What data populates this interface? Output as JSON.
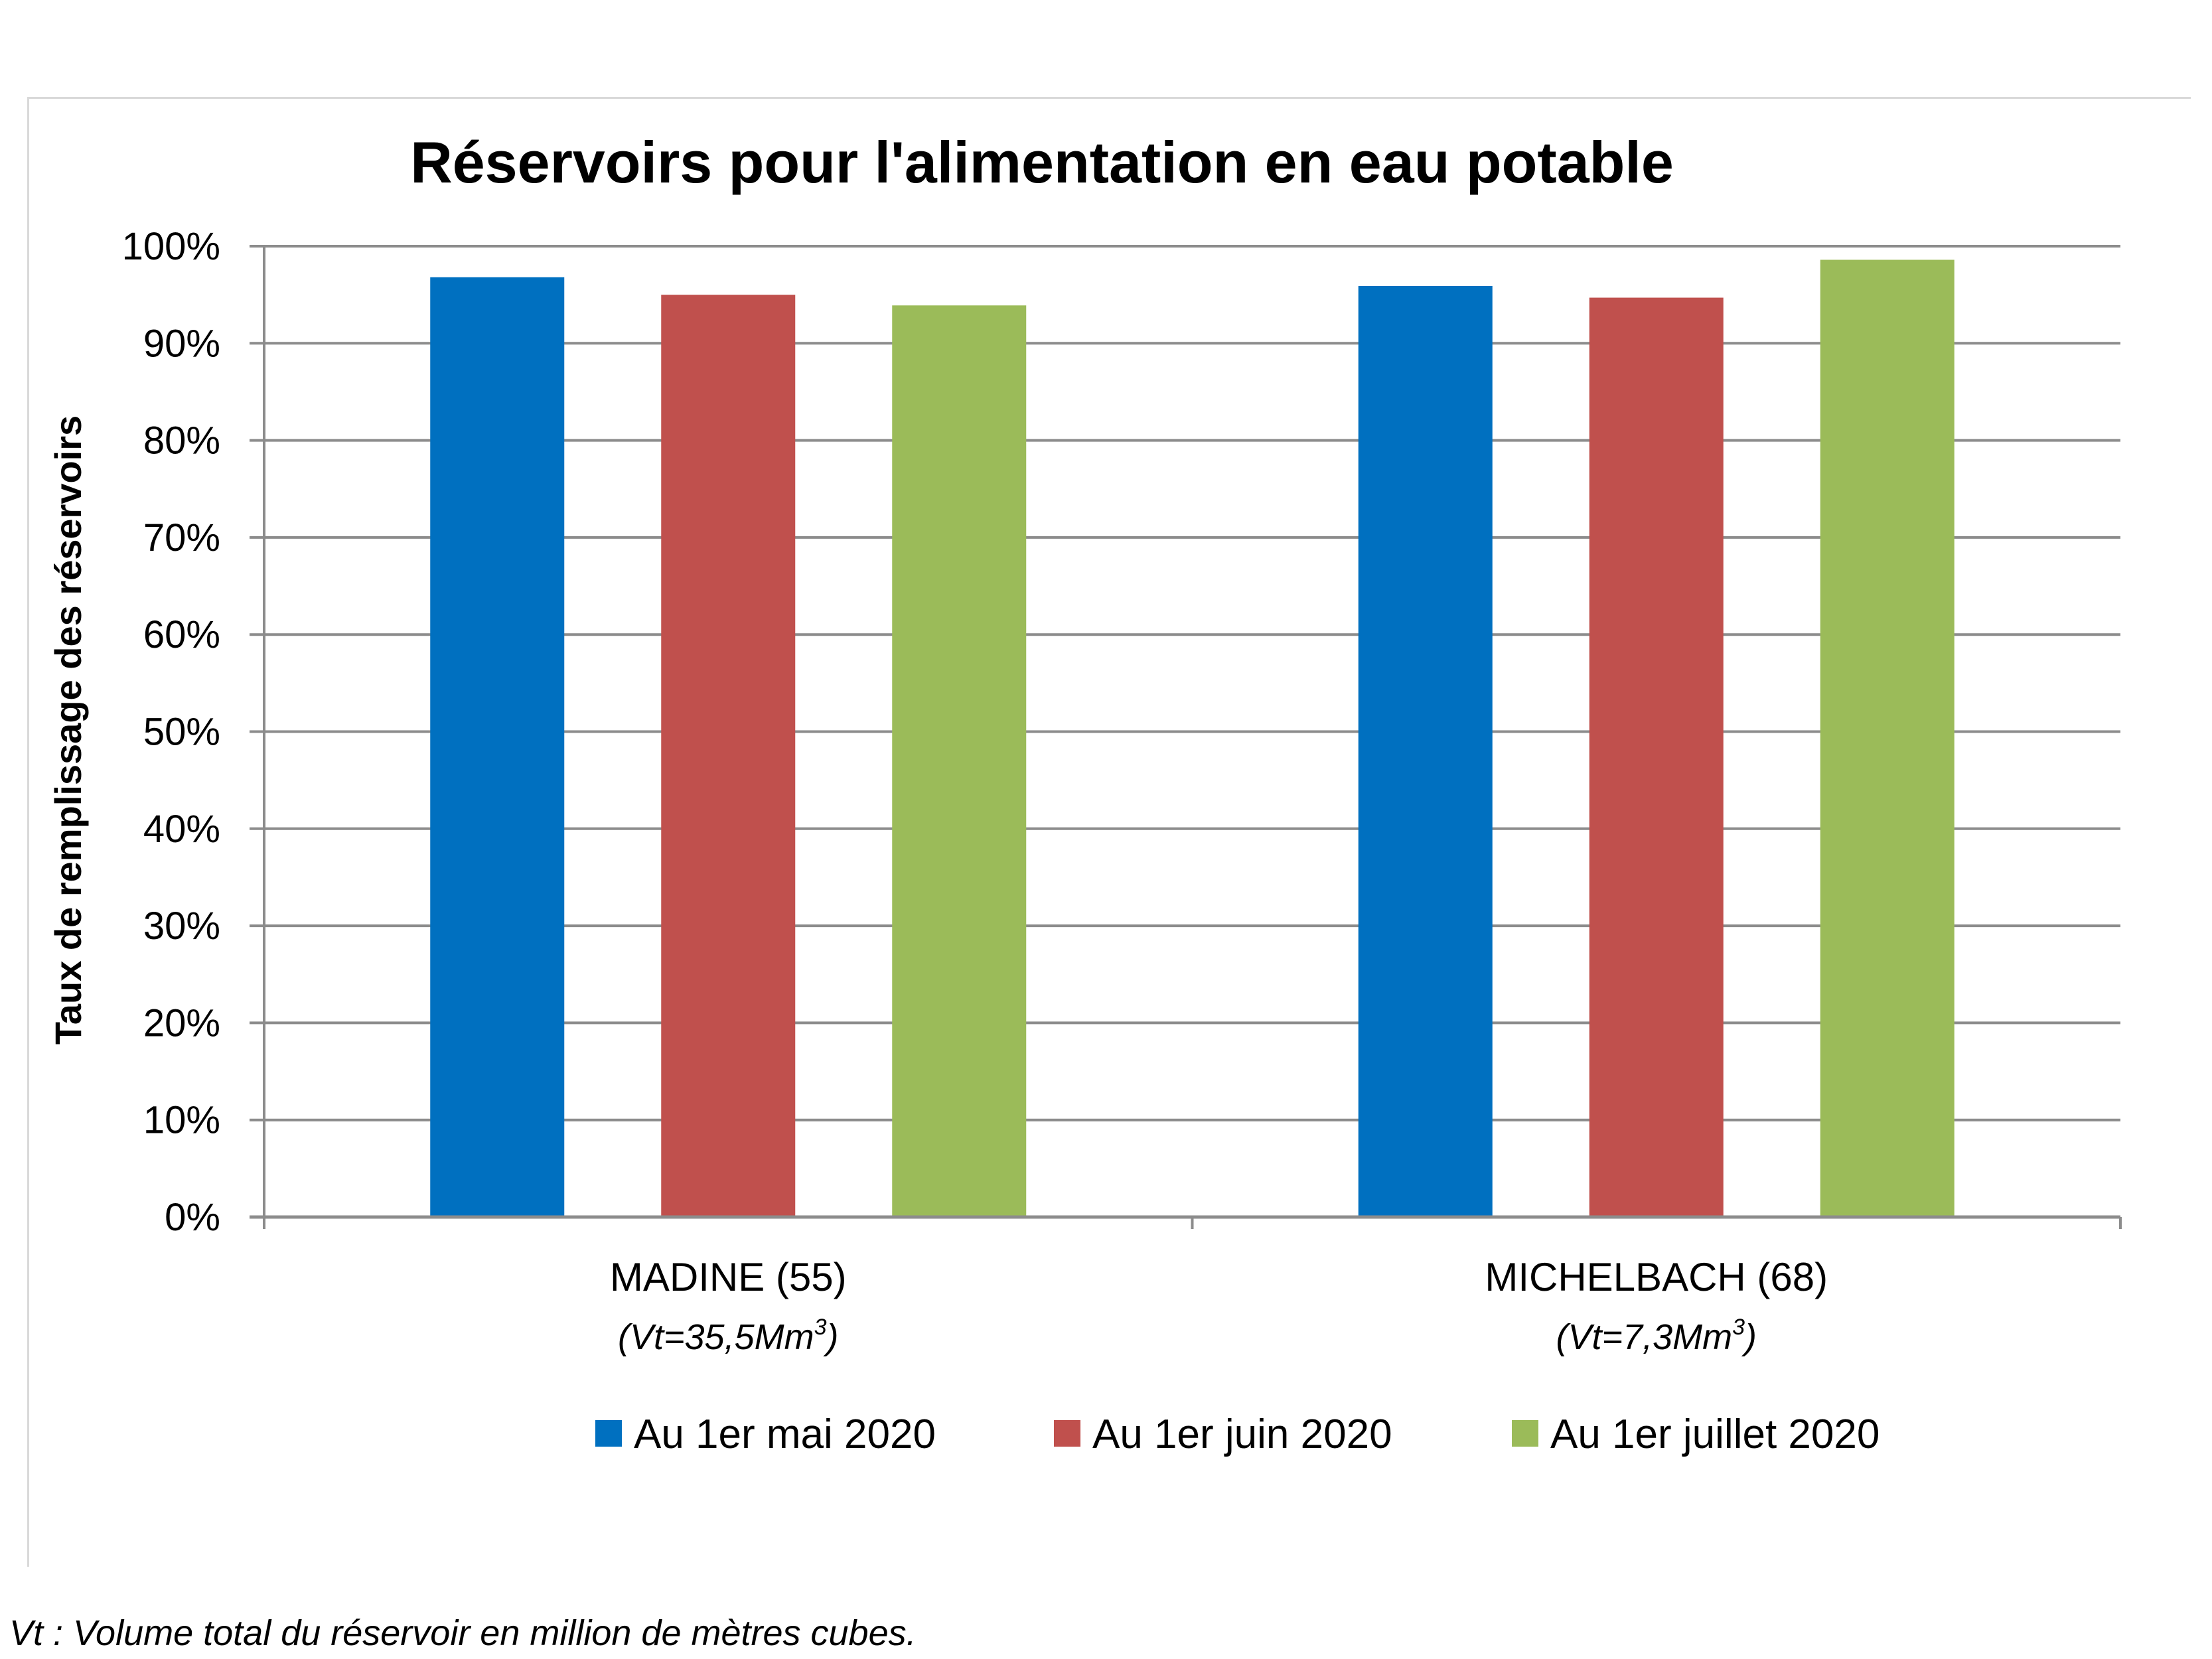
{
  "chart_data": {
    "type": "bar",
    "title": "Réservoirs pour l'alimentation en eau potable",
    "ylabel": "Taux de remplissage des réservoirs",
    "xlabel": "",
    "ylim": [
      0,
      100
    ],
    "ytick_step": 10,
    "ytick_labels": [
      "0%",
      "10%",
      "20%",
      "30%",
      "40%",
      "50%",
      "60%",
      "70%",
      "80%",
      "90%",
      "100%"
    ],
    "categories": [
      {
        "name": "MADINE (55)",
        "volume": "(Vt=35,5Mm",
        "volume_sup": "3",
        "volume_end": ")"
      },
      {
        "name": "MICHELBACH (68)",
        "volume": "(Vt=7,3Mm",
        "volume_sup": "3",
        "volume_end": ")"
      }
    ],
    "series": [
      {
        "name": "Au 1er mai 2020",
        "color": "#0070c0",
        "values": [
          96.8,
          95.9
        ]
      },
      {
        "name": "Au 1er juin 2020",
        "color": "#c0504d",
        "values": [
          95.0,
          94.7
        ]
      },
      {
        "name": "Au 1er juillet 2020",
        "color": "#9bbb59",
        "values": [
          93.9,
          98.6
        ]
      }
    ],
    "grid": true,
    "legend_position": "bottom"
  },
  "footnote": "Vt : Volume total du réservoir en million de mètres cubes."
}
